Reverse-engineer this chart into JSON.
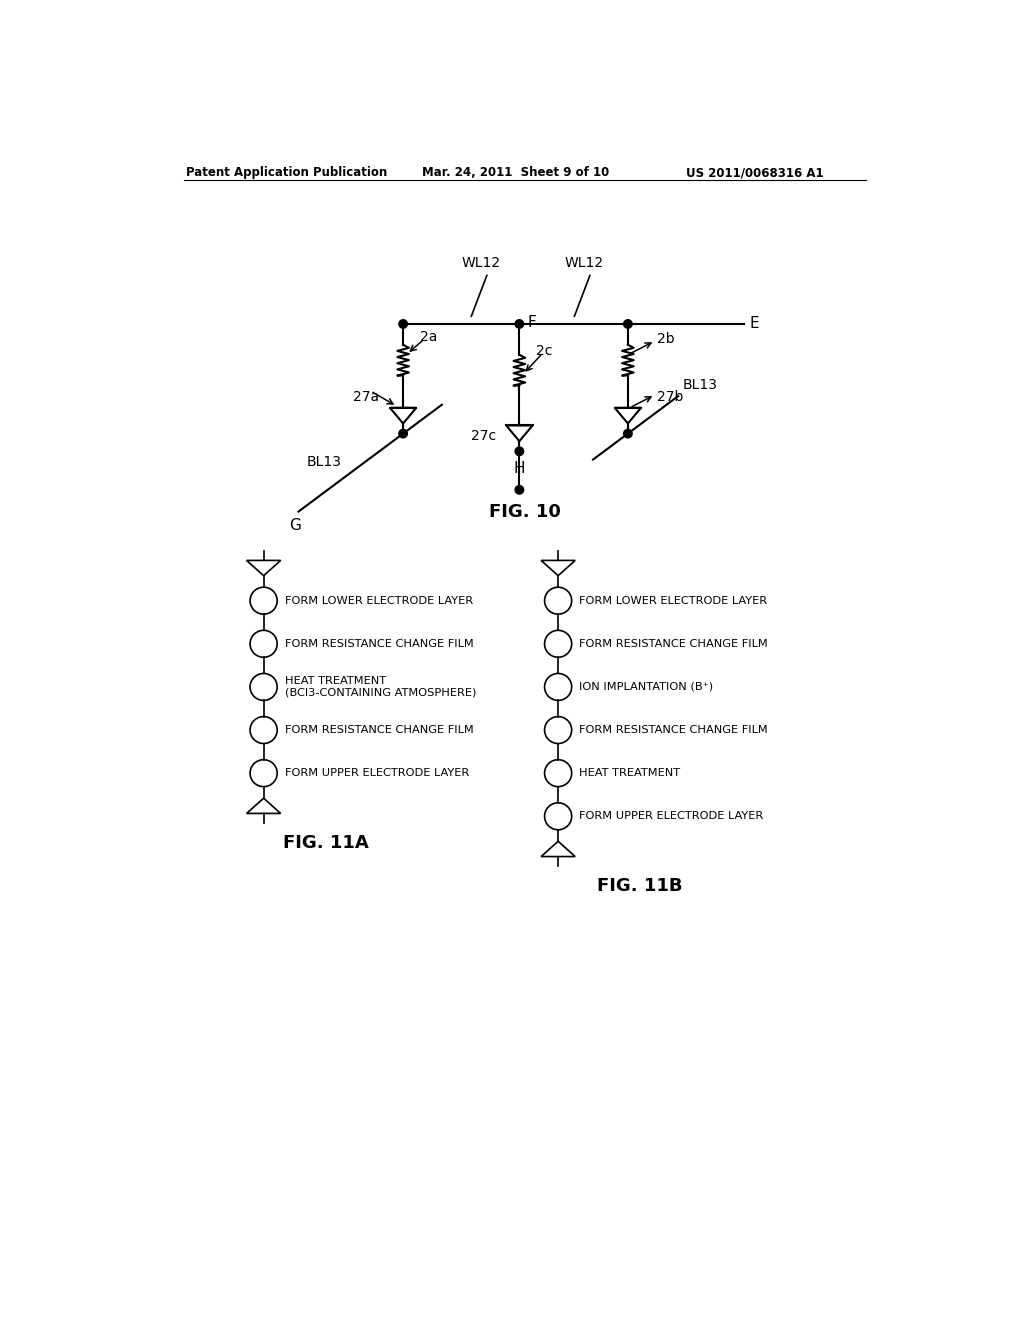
{
  "bg_color": "#ffffff",
  "text_color": "#000000",
  "header_left": "Patent Application Publication",
  "header_mid": "Mar. 24, 2011  Sheet 9 of 10",
  "header_right": "US 2011/0068316 A1",
  "fig10_title": "FIG. 10",
  "fig11a_title": "FIG. 11A",
  "fig11b_title": "FIG. 11B",
  "fig11a_steps": [
    "FORM LOWER ELECTRODE LAYER",
    "FORM RESISTANCE CHANGE FILM",
    "HEAT TREATMENT\n(BCl3-CONTAINING ATMOSPHERE)",
    "FORM RESISTANCE CHANGE FILM",
    "FORM UPPER ELECTRODE LAYER"
  ],
  "fig11b_steps": [
    "FORM LOWER ELECTRODE LAYER",
    "FORM RESISTANCE CHANGE FILM",
    "ION IMPLANTATION (B⁺)",
    "FORM RESISTANCE CHANGE FILM",
    "HEAT TREATMENT",
    "FORM UPPER ELECTRODE LAYER"
  ]
}
